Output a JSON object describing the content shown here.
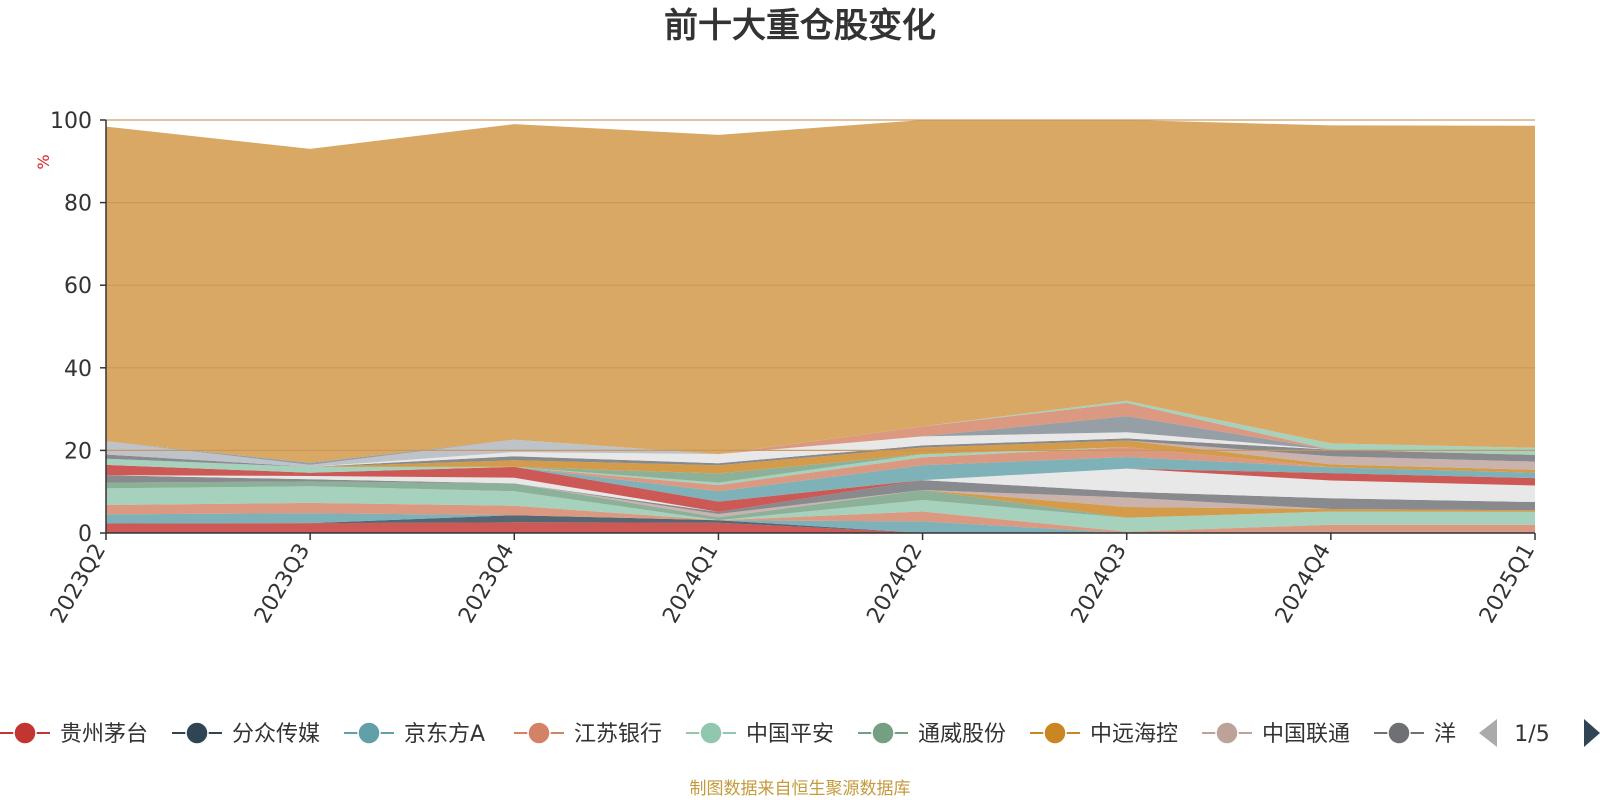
{
  "title": "前十大重仓股变化",
  "footer": "制图数据来自恒生聚源数据库",
  "colors": {
    "footer": "#c49a3c",
    "ylabel": "#e02020",
    "background_area": "#d9a864",
    "axis": "#333333",
    "grid": "#c8955a"
  },
  "legend": {
    "items": [
      {
        "label": "贵州茅台",
        "color": "#c23531"
      },
      {
        "label": "分众传媒",
        "color": "#2f4554"
      },
      {
        "label": "京东方A",
        "color": "#61a0a8"
      },
      {
        "label": "江苏银行",
        "color": "#d48265"
      },
      {
        "label": "中国平安",
        "color": "#91c7ae"
      },
      {
        "label": "通威股份",
        "color": "#749f83"
      },
      {
        "label": "中远海控",
        "color": "#ca8622"
      },
      {
        "label": "中国联通",
        "color": "#bda29a"
      },
      {
        "label": "洋",
        "color": "#6e7074"
      }
    ],
    "page": "1/5",
    "prev_icon": "triangle-left-icon",
    "next_icon": "triangle-right-icon"
  },
  "chart_data": {
    "type": "area",
    "title": "前十大重仓股变化",
    "ylabel": "%",
    "xlabel": "",
    "ylim": [
      0,
      100
    ],
    "yticks": [
      0,
      20,
      40,
      60,
      80,
      100
    ],
    "categories": [
      "2023Q2",
      "2023Q3",
      "2023Q4",
      "2024Q1",
      "2024Q2",
      "2024Q3",
      "2024Q4",
      "2025Q1"
    ],
    "grid": true,
    "stacked": true,
    "layers": [
      {
        "color": "#c23531",
        "values": [
          2.3,
          2.4,
          2.6,
          2.5,
          0.0,
          0.0,
          0.0,
          0.0
        ]
      },
      {
        "color": "#2f4554",
        "values": [
          0.0,
          0.0,
          1.7,
          0.6,
          0.0,
          0.0,
          0.0,
          0.0
        ]
      },
      {
        "color": "#61a0a8",
        "values": [
          2.2,
          2.4,
          0.0,
          0.0,
          2.8,
          0.0,
          0.0,
          0.0
        ]
      },
      {
        "color": "#d48265",
        "values": [
          2.3,
          2.5,
          2.3,
          0.0,
          2.4,
          0.3,
          2.0,
          2.0
        ]
      },
      {
        "color": "#91c7ae",
        "values": [
          4.0,
          4.0,
          3.5,
          0.0,
          2.8,
          3.4,
          3.2,
          3.1
        ]
      },
      {
        "color": "#749f83",
        "values": [
          1.4,
          1.2,
          1.9,
          0.7,
          2.4,
          0.0,
          0.0,
          0.0
        ]
      },
      {
        "color": "#ca8622",
        "values": [
          0.0,
          0.0,
          0.0,
          0.0,
          0.0,
          2.6,
          0.6,
          0.4
        ]
      },
      {
        "color": "#bda29a",
        "values": [
          0.0,
          0.0,
          0.0,
          0.8,
          0.0,
          2.3,
          0.0,
          0.0
        ]
      },
      {
        "color": "#6e7074",
        "values": [
          1.8,
          0.5,
          0.0,
          0.5,
          2.4,
          1.4,
          2.6,
          2.0
        ]
      },
      {
        "color": "#546570",
        "values": [
          0.0,
          0.0,
          0.0,
          0.0,
          0.0,
          0.0,
          0.0,
          0.0
        ]
      },
      {
        "color": "#e3e3e3",
        "values": [
          0.0,
          0.8,
          1.4,
          0.0,
          0.0,
          5.6,
          4.3,
          4.0
        ]
      },
      {
        "color": "#c23531",
        "values": [
          2.5,
          0.8,
          2.6,
          2.5,
          0.0,
          0.0,
          1.8,
          1.8
        ]
      },
      {
        "color": "#61a0a8",
        "values": [
          0.0,
          0.0,
          0.0,
          2.5,
          3.6,
          2.8,
          1.4,
          1.3
        ]
      },
      {
        "color": "#d48265",
        "values": [
          0.0,
          0.0,
          0.0,
          1.5,
          1.9,
          2.4,
          0.0,
          0.0
        ]
      },
      {
        "color": "#91c7ae",
        "values": [
          1.5,
          1.4,
          0.0,
          0.6,
          0.8,
          0.0,
          0.0,
          0.0
        ]
      },
      {
        "color": "#749f83",
        "values": [
          0.0,
          0.0,
          0.0,
          2.2,
          0.0,
          0.0,
          0.0,
          0.0
        ]
      },
      {
        "color": "#ca8622",
        "values": [
          0.0,
          0.0,
          1.6,
          2.0,
          1.6,
          1.6,
          0.7,
          0.7
        ]
      },
      {
        "color": "#bda29a",
        "values": [
          0.0,
          0.0,
          0.0,
          0.0,
          0.0,
          0.0,
          2.0,
          2.0
        ]
      },
      {
        "color": "#6e7074",
        "values": [
          1.0,
          0.0,
          1.0,
          0.5,
          0.5,
          0.5,
          1.6,
          1.6
        ]
      },
      {
        "color": "#e3e3e3",
        "values": [
          0.0,
          0.0,
          1.0,
          2.2,
          2.2,
          1.5,
          0.0,
          0.0
        ]
      },
      {
        "color": "#b0b6bd",
        "values": [
          3.2,
          0.5,
          3.0,
          0.0,
          0.0,
          0.0,
          0.0,
          0.0
        ]
      },
      {
        "color": "#7f8a93",
        "values": [
          0.0,
          0.5,
          0.0,
          0.0,
          0.0,
          3.9,
          0.0,
          0.0
        ]
      },
      {
        "color": "#d48265",
        "values": [
          0.0,
          0.0,
          0.0,
          0.0,
          2.4,
          3.2,
          0.0,
          0.0
        ]
      },
      {
        "color": "#91c7ae",
        "values": [
          0.0,
          0.0,
          0.0,
          0.0,
          0.0,
          0.5,
          1.5,
          1.7
        ]
      },
      {
        "color": "#dc9c6a",
        "values": [
          76.2,
          76.0,
          76.4,
          77.3,
          74.2,
          68.0,
          77.0,
          78.0
        ]
      }
    ]
  }
}
